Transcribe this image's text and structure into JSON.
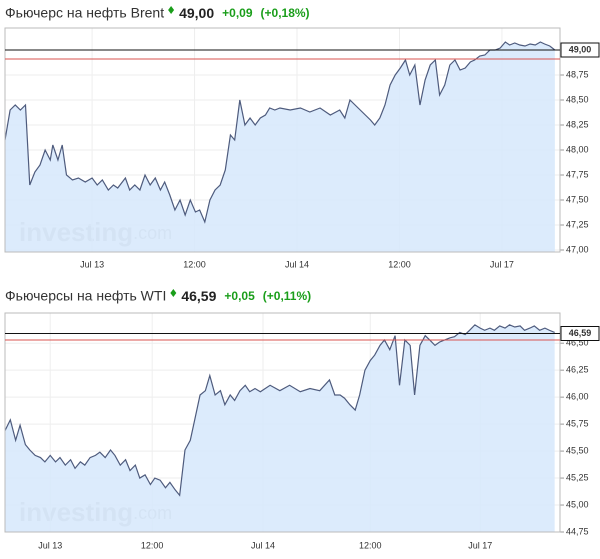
{
  "chart_data": [
    {
      "type": "line",
      "fill": true,
      "grid": true,
      "header": {
        "title": "Фьючерс на нефть Brent",
        "price": "49,00",
        "change": "+0,09",
        "change_pct": "(+0,18%)",
        "change_color": "#1a9e1a"
      },
      "watermark": [
        "investing",
        ".com"
      ],
      "color": "#4e5b7d",
      "fill_color": "#d6e7fb",
      "last": {
        "value": 49.0,
        "label": "49,00"
      },
      "prev_close": 48.91,
      "xlim": [
        -10.2,
        54.8
      ],
      "xticks": [
        {
          "value": 0,
          "label": "Jul 13"
        },
        {
          "value": 12,
          "label": "12:00"
        },
        {
          "value": 24,
          "label": "Jul 14"
        },
        {
          "value": 36,
          "label": "12:00"
        },
        {
          "value": 48,
          "label": "Jul 17"
        }
      ],
      "ylim": [
        46.98,
        49.22
      ],
      "yticks": [
        {
          "value": 47.0,
          "label": "47,00"
        },
        {
          "value": 47.25,
          "label": "47,25"
        },
        {
          "value": 47.5,
          "label": "47,50"
        },
        {
          "value": 47.75,
          "label": "47,75"
        },
        {
          "value": 48.0,
          "label": "48,00"
        },
        {
          "value": 48.25,
          "label": "48,25"
        },
        {
          "value": 48.5,
          "label": "48,50"
        },
        {
          "value": 48.75,
          "label": "48,75"
        }
      ],
      "x": [
        -10.2,
        -9.6,
        -9.0,
        -8.4,
        -7.8,
        -7.3,
        -6.7,
        -6.1,
        -5.5,
        -4.9,
        -4.6,
        -4.0,
        -3.5,
        -3.0,
        -2.3,
        -1.6,
        -0.8,
        0,
        0.6,
        1.2,
        1.9,
        2.5,
        3.0,
        3.9,
        4.4,
        5.0,
        5.6,
        6.2,
        6.8,
        7.4,
        8.0,
        8.5,
        9.1,
        9.7,
        10.3,
        10.9,
        11.5,
        12.1,
        12.6,
        13.2,
        13.8,
        14.4,
        15.0,
        15.6,
        16.2,
        16.7,
        17.3,
        17.9,
        18.5,
        19.1,
        19.7,
        20.3,
        20.8,
        21.4,
        22.0,
        23.2,
        24.4,
        25.5,
        26.7,
        27.9,
        29.0,
        29.6,
        30.2,
        30.8,
        31.4,
        32.0,
        32.6,
        33.1,
        33.7,
        34.3,
        34.9,
        35.5,
        36.1,
        36.7,
        37.2,
        37.8,
        38.4,
        39.0,
        39.6,
        40.2,
        40.7,
        41.3,
        41.9,
        42.5,
        43.1,
        43.7,
        44.3,
        44.8,
        45.4,
        46.0,
        46.6,
        47.2,
        47.8,
        48.4,
        48.9,
        49.5,
        50.1,
        50.7,
        51.3,
        51.9,
        52.5,
        53.0,
        53.6,
        54.2
      ],
      "values": [
        48.1,
        48.4,
        48.45,
        48.4,
        48.45,
        47.65,
        47.78,
        47.85,
        48.0,
        47.9,
        48.05,
        47.9,
        48.05,
        47.75,
        47.7,
        47.72,
        47.68,
        47.72,
        47.65,
        47.7,
        47.6,
        47.65,
        47.62,
        47.72,
        47.6,
        47.65,
        47.6,
        47.75,
        47.65,
        47.72,
        47.6,
        47.68,
        47.55,
        47.4,
        47.5,
        47.35,
        47.5,
        47.38,
        47.4,
        47.28,
        47.5,
        47.6,
        47.65,
        47.8,
        48.15,
        48.1,
        48.5,
        48.25,
        48.32,
        48.25,
        48.32,
        48.35,
        48.42,
        48.4,
        48.42,
        48.4,
        48.42,
        48.38,
        48.42,
        48.35,
        48.4,
        48.32,
        48.5,
        48.45,
        48.4,
        48.35,
        48.3,
        48.25,
        48.32,
        48.45,
        48.65,
        48.75,
        48.82,
        48.9,
        48.75,
        48.85,
        48.45,
        48.7,
        48.85,
        48.9,
        48.55,
        48.65,
        48.85,
        48.9,
        48.8,
        48.82,
        48.88,
        48.9,
        48.94,
        48.95,
        49.0,
        49.0,
        49.02,
        49.08,
        49.05,
        49.07,
        49.05,
        49.04,
        49.06,
        49.05,
        49.08,
        49.06,
        49.04,
        49.0
      ]
    },
    {
      "type": "line",
      "fill": true,
      "grid": true,
      "header": {
        "title": "Фьючерсы на нефть WTI",
        "price": "46,59",
        "change": "+0,05",
        "change_pct": "(+0,11%)",
        "change_color": "#1a9e1a"
      },
      "watermark": [
        "investing",
        ".com"
      ],
      "color": "#4e5b7d",
      "fill_color": "#d6e7fb",
      "last": {
        "value": 46.59,
        "label": "46,59"
      },
      "prev_close": 46.53,
      "xlim": [
        -5.1,
        57.5
      ],
      "xticks": [
        {
          "value": 0,
          "label": "Jul 13"
        },
        {
          "value": 11.5,
          "label": "12:00"
        },
        {
          "value": 24,
          "label": "Jul 14"
        },
        {
          "value": 36.1,
          "label": "12:00"
        },
        {
          "value": 48.5,
          "label": "Jul 17"
        }
      ],
      "ylim": [
        44.75,
        46.78
      ],
      "yticks": [
        {
          "value": 44.75,
          "label": "44,75"
        },
        {
          "value": 45.0,
          "label": "45,00"
        },
        {
          "value": 45.25,
          "label": "45,25"
        },
        {
          "value": 45.5,
          "label": "45,50"
        },
        {
          "value": 45.75,
          "label": "45,75"
        },
        {
          "value": 46.0,
          "label": "46,00"
        },
        {
          "value": 46.25,
          "label": "46,25"
        },
        {
          "value": 46.5,
          "label": "46,50"
        }
      ],
      "x": [
        -5.1,
        -4.5,
        -3.9,
        -3.4,
        -2.8,
        -2.3,
        -1.7,
        -1.1,
        -0.6,
        0,
        0.6,
        1.1,
        1.7,
        2.3,
        2.8,
        3.4,
        3.9,
        4.5,
        5.1,
        5.6,
        6.2,
        6.8,
        7.3,
        7.9,
        8.5,
        9.0,
        9.6,
        10.1,
        10.7,
        11.3,
        11.8,
        12.4,
        13.0,
        13.5,
        14.1,
        14.6,
        15.2,
        15.8,
        16.3,
        16.9,
        17.5,
        18.0,
        18.6,
        19.2,
        19.7,
        20.3,
        20.8,
        21.4,
        22.0,
        22.5,
        23.1,
        23.7,
        24.8,
        25.9,
        27.0,
        28.2,
        29.3,
        30.4,
        31.5,
        32.1,
        32.7,
        33.2,
        33.8,
        34.4,
        34.9,
        35.5,
        36.1,
        36.6,
        37.2,
        37.7,
        38.3,
        38.9,
        39.4,
        40.0,
        40.6,
        41.1,
        41.7,
        42.3,
        42.8,
        43.4,
        43.9,
        44.5,
        45.1,
        45.6,
        46.2,
        46.8,
        47.3,
        47.9,
        48.5,
        49.0,
        49.6,
        50.1,
        50.7,
        51.3,
        51.8,
        52.4,
        53.0,
        53.5,
        54.1,
        54.6,
        55.2,
        55.8,
        56.3,
        56.9
      ],
      "values": [
        45.69,
        45.79,
        45.6,
        45.74,
        45.56,
        45.51,
        45.46,
        45.44,
        45.4,
        45.46,
        45.4,
        45.44,
        45.37,
        45.42,
        45.34,
        45.4,
        45.37,
        45.44,
        45.46,
        45.49,
        45.44,
        45.51,
        45.46,
        45.37,
        45.42,
        45.32,
        45.37,
        45.25,
        45.28,
        45.19,
        45.25,
        45.23,
        45.16,
        45.21,
        45.14,
        45.09,
        45.51,
        45.6,
        45.79,
        46.02,
        46.06,
        46.2,
        46.02,
        46.06,
        45.93,
        46.02,
        45.97,
        46.06,
        46.11,
        46.05,
        46.08,
        46.05,
        46.11,
        46.06,
        46.11,
        46.05,
        46.08,
        46.06,
        46.16,
        46.02,
        46.02,
        45.99,
        45.93,
        45.88,
        46.02,
        46.25,
        46.34,
        46.39,
        46.48,
        46.53,
        46.44,
        46.57,
        46.11,
        46.53,
        46.48,
        46.02,
        46.48,
        46.57,
        46.53,
        46.48,
        46.51,
        46.53,
        46.55,
        46.56,
        46.6,
        46.58,
        46.62,
        46.67,
        46.64,
        46.62,
        46.64,
        46.62,
        46.66,
        46.64,
        46.67,
        46.65,
        46.66,
        46.62,
        46.64,
        46.66,
        46.62,
        46.64,
        46.62,
        46.6
      ]
    }
  ]
}
